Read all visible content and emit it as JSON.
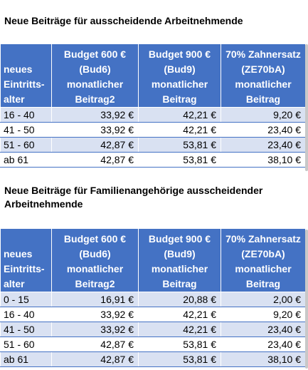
{
  "tables": [
    {
      "heading": "Neue Beiträge für ausscheidende Arbeitnehmende",
      "headers": [
        "neues\nEintritts-\nalter",
        "Budget 600 €\n(Bud6)\nmonatlicher\nBeitrag2",
        "Budget 900 €\n(Bud9)\nmonatlicher\nBeitrag",
        "70% Zahnersatz\n(ZE70bA)\nmonatlicher\nBeitrag"
      ],
      "rows": [
        [
          "16 - 40",
          "33,92 €",
          "42,21 €",
          "9,20 €"
        ],
        [
          "41 - 50",
          "33,92 €",
          "42,21 €",
          "23,40 €"
        ],
        [
          "51 - 60",
          "42,87 €",
          "53,81 €",
          "23,40 €"
        ],
        [
          "ab 61",
          "42,87 €",
          "53,81 €",
          "38,10 €"
        ]
      ]
    },
    {
      "heading": "Neue Beiträge für Familienangehörige ausscheidender Arbeitnehmende",
      "headers": [
        "neues\nEintritts-\nalter",
        "Budget 600 €\n(Bud6)\nmonatlicher\nBeitrag2",
        "Budget 900 €\n(Bud9)\nmonatlicher\nBeitrag",
        "70% Zahnersatz\n(ZE70bA)\nmonatlicher\nBeitrag"
      ],
      "rows": [
        [
          "0 - 15",
          "16,91 €",
          "20,88 €",
          "2,00 €"
        ],
        [
          "16 - 40",
          "33,92 €",
          "42,21 €",
          "9,20 €"
        ],
        [
          "41 - 50",
          "33,92 €",
          "42,21 €",
          "23,40 €"
        ],
        [
          "51 - 60",
          "42,87 €",
          "53,81 €",
          "23,40 €"
        ],
        [
          "ab 61",
          "42,87 €",
          "53,81 €",
          "38,10 €"
        ]
      ]
    }
  ]
}
